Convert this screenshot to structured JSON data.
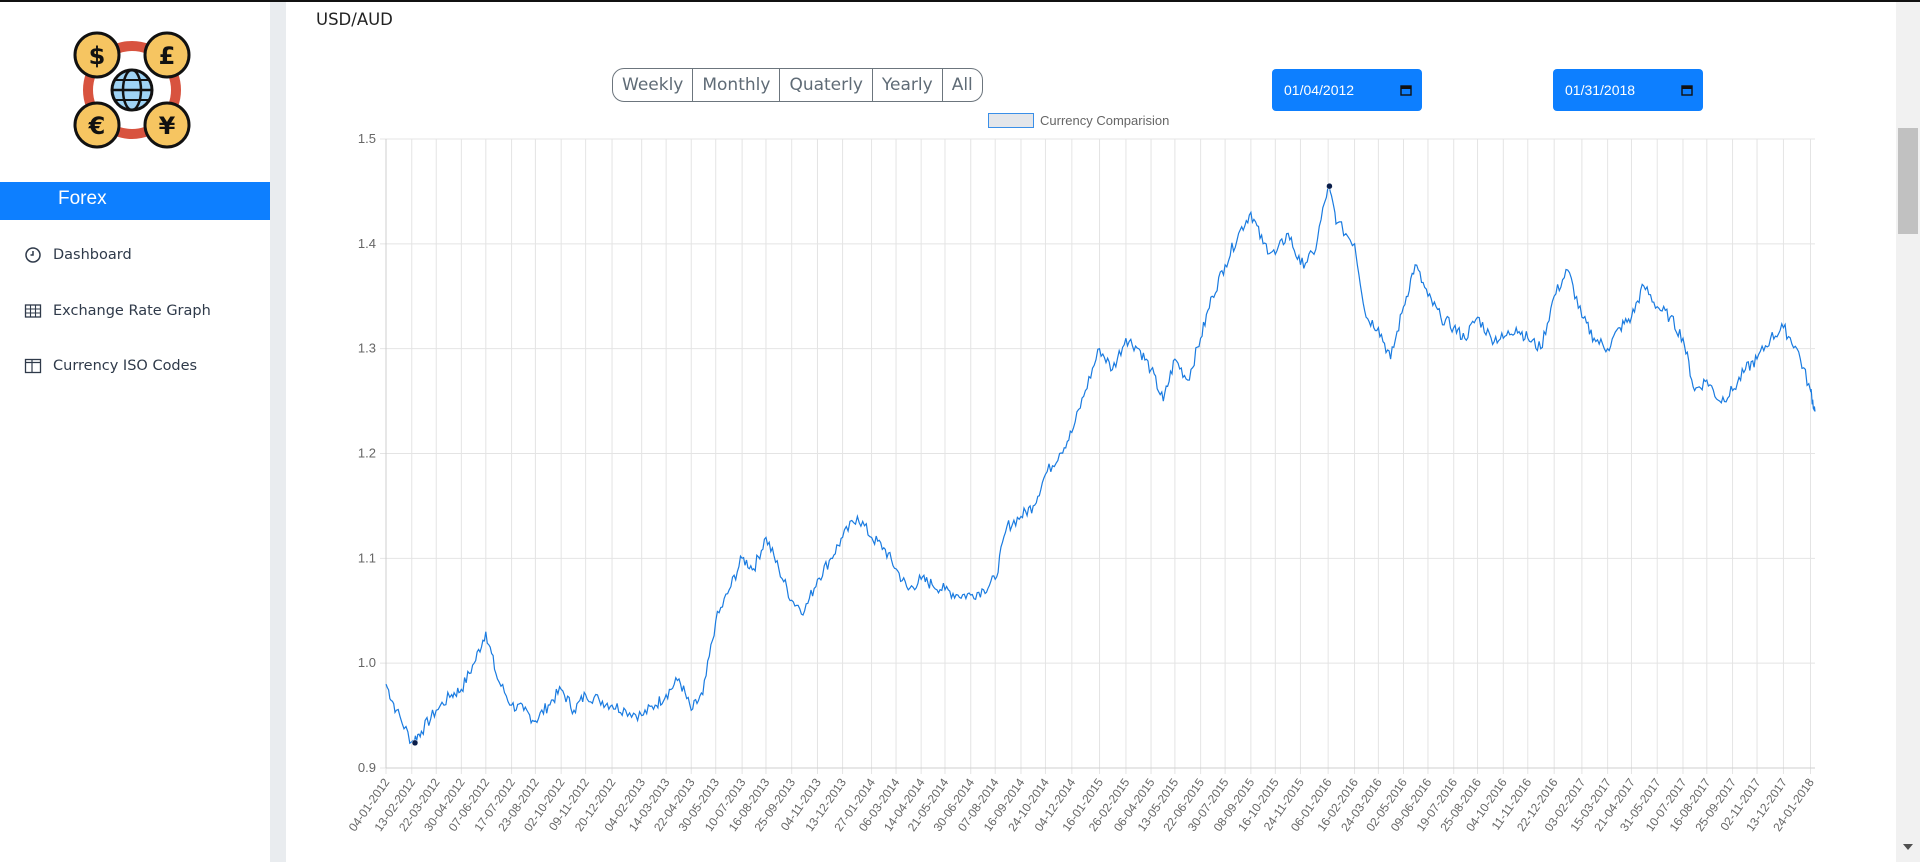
{
  "sidebar": {
    "brand": "Forex",
    "logo_icon": "currency-exchange-icon",
    "items": [
      {
        "label": "Dashboard",
        "icon": "clock-icon"
      },
      {
        "label": "Exchange Rate Graph",
        "icon": "table-icon"
      },
      {
        "label": "Currency ISO Codes",
        "icon": "columns-icon"
      }
    ]
  },
  "header": {
    "title": "USD/AUD"
  },
  "range_buttons": [
    "Weekly",
    "Monthly",
    "Quaterly",
    "Yearly",
    "All"
  ],
  "date_filters": {
    "start": "01/04/2012",
    "end": "01/31/2018"
  },
  "colors": {
    "accent": "#0d7fff",
    "line": "#1a7be0"
  },
  "chart_data": {
    "type": "line",
    "title": "",
    "legend": "Currency Comparision",
    "legend_position": "top-center",
    "grid": true,
    "ylim": [
      0.9,
      1.5
    ],
    "y_ticks": [
      0.9,
      1.0,
      1.1,
      1.2,
      1.3,
      1.4,
      1.5
    ],
    "x_tick_labels": [
      "04-01-2012",
      "13-02-2012",
      "22-03-2012",
      "30-04-2012",
      "07-06-2012",
      "17-07-2012",
      "23-08-2012",
      "02-10-2012",
      "09-11-2012",
      "20-12-2012",
      "04-02-2013",
      "14-03-2013",
      "22-04-2013",
      "30-05-2013",
      "10-07-2013",
      "16-08-2013",
      "25-09-2013",
      "04-11-2013",
      "13-12-2013",
      "27-01-2014",
      "06-03-2014",
      "14-04-2014",
      "21-05-2014",
      "30-06-2014",
      "07-08-2014",
      "16-09-2014",
      "24-10-2014",
      "04-12-2014",
      "16-01-2015",
      "26-02-2015",
      "06-04-2015",
      "13-05-2015",
      "22-06-2015",
      "30-07-2015",
      "08-09-2015",
      "16-10-2015",
      "24-11-2015",
      "06-01-2016",
      "16-02-2016",
      "24-03-2016",
      "02-05-2016",
      "09-06-2016",
      "19-07-2016",
      "25-08-2016",
      "04-10-2016",
      "11-11-2016",
      "22-12-2016",
      "03-02-2017",
      "15-03-2017",
      "21-04-2017",
      "31-05-2017",
      "10-07-2017",
      "16-08-2017",
      "25-09-2017",
      "02-11-2017",
      "13-12-2017",
      "24-01-2018"
    ],
    "series": [
      {
        "name": "Currency Comparision",
        "x": [
          "2012-01-04",
          "2012-01-20",
          "2012-02-13",
          "2012-02-28",
          "2012-03-22",
          "2012-04-15",
          "2012-04-30",
          "2012-05-20",
          "2012-06-07",
          "2012-06-25",
          "2012-07-17",
          "2012-08-05",
          "2012-08-23",
          "2012-09-12",
          "2012-10-02",
          "2012-10-22",
          "2012-11-09",
          "2012-11-30",
          "2012-12-20",
          "2013-01-10",
          "2013-02-04",
          "2013-02-25",
          "2013-03-14",
          "2013-04-03",
          "2013-04-22",
          "2013-05-10",
          "2013-05-30",
          "2013-06-20",
          "2013-07-10",
          "2013-07-28",
          "2013-08-16",
          "2013-09-05",
          "2013-09-25",
          "2013-10-15",
          "2013-11-04",
          "2013-11-25",
          "2013-12-13",
          "2014-01-05",
          "2014-01-27",
          "2014-02-15",
          "2014-03-06",
          "2014-03-25",
          "2014-04-14",
          "2014-05-01",
          "2014-05-21",
          "2014-06-10",
          "2014-06-30",
          "2014-07-20",
          "2014-08-07",
          "2014-08-25",
          "2014-09-16",
          "2014-10-05",
          "2014-10-24",
          "2014-11-15",
          "2014-12-04",
          "2014-12-25",
          "2015-01-16",
          "2015-02-05",
          "2015-02-26",
          "2015-03-18",
          "2015-04-06",
          "2015-04-25",
          "2015-05-13",
          "2015-06-02",
          "2015-06-22",
          "2015-07-10",
          "2015-07-30",
          "2015-08-20",
          "2015-09-08",
          "2015-09-27",
          "2015-10-16",
          "2015-11-05",
          "2015-11-24",
          "2015-12-15",
          "2016-01-06",
          "2016-01-20",
          "2016-02-16",
          "2016-03-05",
          "2016-03-24",
          "2016-04-12",
          "2016-05-02",
          "2016-05-20",
          "2016-06-09",
          "2016-06-29",
          "2016-07-19",
          "2016-08-05",
          "2016-08-25",
          "2016-09-15",
          "2016-10-04",
          "2016-10-24",
          "2016-11-11",
          "2016-12-01",
          "2016-12-22",
          "2017-01-12",
          "2017-02-03",
          "2017-02-22",
          "2017-03-15",
          "2017-04-03",
          "2017-04-21",
          "2017-05-10",
          "2017-05-31",
          "2017-06-20",
          "2017-07-10",
          "2017-07-28",
          "2017-08-16",
          "2017-09-05",
          "2017-09-25",
          "2017-10-15",
          "2017-11-02",
          "2017-11-23",
          "2017-12-13",
          "2018-01-03",
          "2018-01-24",
          "2018-01-31"
        ],
        "y": [
          0.98,
          0.955,
          0.925,
          0.935,
          0.955,
          0.97,
          0.975,
          1.0,
          1.03,
          0.985,
          0.96,
          0.955,
          0.945,
          0.96,
          0.975,
          0.955,
          0.97,
          0.965,
          0.96,
          0.955,
          0.95,
          0.96,
          0.97,
          0.985,
          0.955,
          0.97,
          1.04,
          1.07,
          1.1,
          1.09,
          1.12,
          1.09,
          1.06,
          1.05,
          1.08,
          1.1,
          1.12,
          1.14,
          1.12,
          1.11,
          1.09,
          1.07,
          1.08,
          1.075,
          1.07,
          1.065,
          1.065,
          1.07,
          1.08,
          1.13,
          1.14,
          1.15,
          1.18,
          1.2,
          1.22,
          1.26,
          1.3,
          1.28,
          1.31,
          1.3,
          1.28,
          1.25,
          1.29,
          1.27,
          1.31,
          1.35,
          1.38,
          1.41,
          1.43,
          1.4,
          1.39,
          1.41,
          1.38,
          1.39,
          1.455,
          1.42,
          1.4,
          1.33,
          1.32,
          1.29,
          1.34,
          1.38,
          1.35,
          1.33,
          1.32,
          1.31,
          1.33,
          1.31,
          1.31,
          1.32,
          1.31,
          1.3,
          1.35,
          1.375,
          1.33,
          1.31,
          1.3,
          1.32,
          1.33,
          1.36,
          1.34,
          1.33,
          1.31,
          1.26,
          1.27,
          1.25,
          1.26,
          1.28,
          1.29,
          1.31,
          1.32,
          1.3,
          1.26,
          1.24
        ],
        "min_point": {
          "x": "2012-02-18",
          "y": 0.924
        },
        "max_point": {
          "x": "2016-01-08",
          "y": 1.455
        }
      }
    ]
  }
}
